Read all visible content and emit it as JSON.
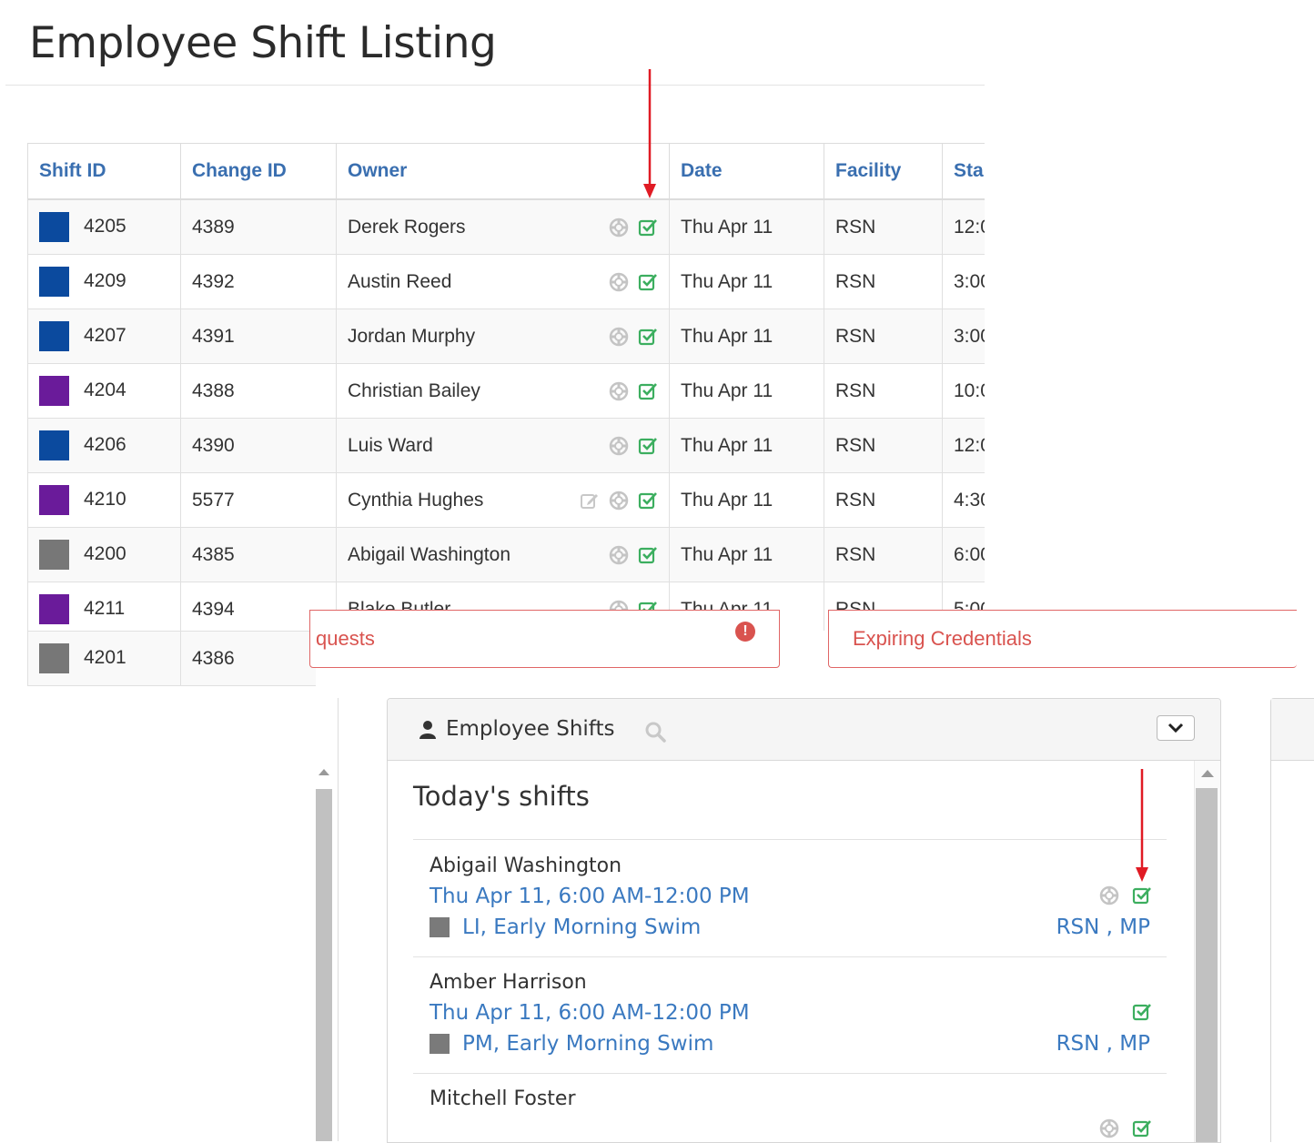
{
  "page": {
    "title": "Employee Shift Listing"
  },
  "table": {
    "headers": [
      "Shift ID",
      "Change ID",
      "Owner",
      "Date",
      "Facility",
      "Sta"
    ],
    "rows": [
      {
        "shift_id": "4205",
        "change_id": "4389",
        "owner": "Derek Rogers",
        "date": "Thu Apr 11",
        "facility": "RSN",
        "start": "12:0",
        "color": "#0b4a9e",
        "edit": false
      },
      {
        "shift_id": "4209",
        "change_id": "4392",
        "owner": "Austin Reed",
        "date": "Thu Apr 11",
        "facility": "RSN",
        "start": "3:00",
        "color": "#0b4a9e",
        "edit": false
      },
      {
        "shift_id": "4207",
        "change_id": "4391",
        "owner": "Jordan Murphy",
        "date": "Thu Apr 11",
        "facility": "RSN",
        "start": "3:00",
        "color": "#0b4a9e",
        "edit": false
      },
      {
        "shift_id": "4204",
        "change_id": "4388",
        "owner": "Christian Bailey",
        "date": "Thu Apr 11",
        "facility": "RSN",
        "start": "10:0",
        "color": "#6a1b9a",
        "edit": false
      },
      {
        "shift_id": "4206",
        "change_id": "4390",
        "owner": "Luis Ward",
        "date": "Thu Apr 11",
        "facility": "RSN",
        "start": "12:0",
        "color": "#0b4a9e",
        "edit": false
      },
      {
        "shift_id": "4210",
        "change_id": "5577",
        "owner": "Cynthia Hughes",
        "date": "Thu Apr 11",
        "facility": "RSN",
        "start": "4:30",
        "color": "#6a1b9a",
        "edit": true
      },
      {
        "shift_id": "4200",
        "change_id": "4385",
        "owner": "Abigail Washington",
        "date": "Thu Apr 11",
        "facility": "RSN",
        "start": "6:00",
        "color": "#777777",
        "edit": false
      },
      {
        "shift_id": "4211",
        "change_id": "4394",
        "owner": "Blake Butler",
        "date": "Thu Apr 11",
        "facility": "RSN",
        "start": "5:00",
        "color": "#6a1b9a",
        "edit": false
      }
    ],
    "partial_row": {
      "shift_id": "4201",
      "change_id": "4386",
      "color": "#777777"
    },
    "icons": {
      "lifesaver": "lifesaver-icon",
      "approved": "checkbox-check-icon",
      "edit": "edit-icon"
    }
  },
  "dashboard": {
    "alerts": [
      {
        "text": "quests",
        "icon": "exclamation-circle-icon"
      },
      {
        "text": "Expiring Credentials"
      }
    ],
    "employee_shifts": {
      "title": "Employee Shifts",
      "icons": {
        "user": "user-icon",
        "search": "search-icon",
        "toggle": "chevron-down-icon"
      },
      "section_title": "Today's shifts",
      "items": [
        {
          "name": "Abigail Washington",
          "time": "Thu Apr 11, 6:00 AM-12:00 PM",
          "position": "LI, Early Morning Swim",
          "facility": "RSN , MP",
          "lifesaver": true,
          "approved": true
        },
        {
          "name": "Amber Harrison",
          "time": "Thu Apr 11, 6:00 AM-12:00 PM",
          "position": "PM, Early Morning Swim",
          "facility": "RSN , MP",
          "lifesaver": false,
          "approved": true
        },
        {
          "name": "Mitchell Foster",
          "time": "",
          "position": "",
          "facility": "",
          "lifesaver": true,
          "approved": true
        }
      ]
    }
  },
  "colors": {
    "link": "#3a79c0",
    "header_link": "#3a6fb0",
    "success": "#3cae5f",
    "danger": "#d9534f",
    "annotation_arrow": "#e01b24"
  }
}
